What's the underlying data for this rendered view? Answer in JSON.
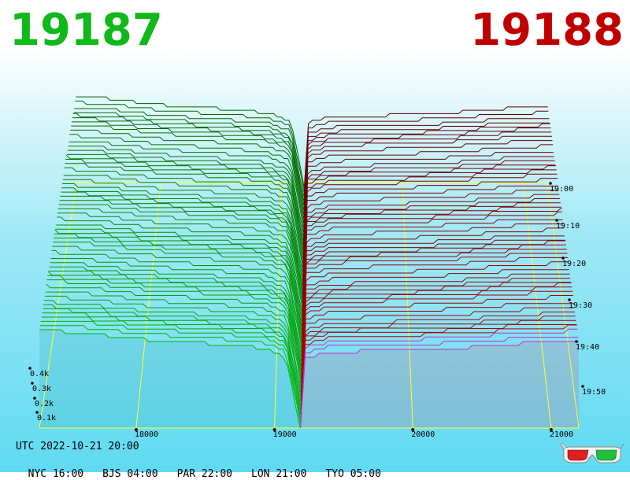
{
  "header": {
    "bid_price": "19187",
    "ask_price": "19188"
  },
  "footer": {
    "utc": "UTC 2022-10-21 20:00",
    "zones": [
      "NYC 16:00",
      "BJS 04:00",
      "PAR 22:00",
      "LON 21:00",
      "TYO 05:00"
    ]
  },
  "colors": {
    "bid": "#10b81a",
    "ask": "#c00000",
    "axis": "#ffff33",
    "bid_fill": "#20a0a8",
    "ask_fill": "#d04060"
  },
  "icons": {
    "corner": "3d-glasses-icon"
  },
  "chart_data": {
    "type": "area",
    "x_ticks": [
      18000,
      19000,
      20000,
      21000
    ],
    "x_tick_labels": [
      "18000",
      "19000",
      "20000",
      "21000"
    ],
    "depth_ticks": [
      "0.1k",
      "0.2k",
      "0.3k",
      "0.4k"
    ],
    "time_ticks": [
      "19:00",
      "19:10",
      "19:20",
      "19:30",
      "19:40",
      "19:50"
    ],
    "mid_price": 19187.5,
    "x_range": [
      17300,
      21200
    ],
    "bid_depth_profile": {
      "price": [
        17300,
        17600,
        18000,
        18500,
        18900,
        19080,
        19187
      ],
      "depth": [
        0.45,
        0.44,
        0.41,
        0.39,
        0.37,
        0.33,
        0.0
      ]
    },
    "ask_depth_profile": {
      "price": [
        19188,
        19220,
        19400,
        20000,
        20400,
        20800,
        21200
      ],
      "depth": [
        0.0,
        0.32,
        0.35,
        0.36,
        0.37,
        0.39,
        0.4
      ]
    },
    "snapshots": 55
  }
}
